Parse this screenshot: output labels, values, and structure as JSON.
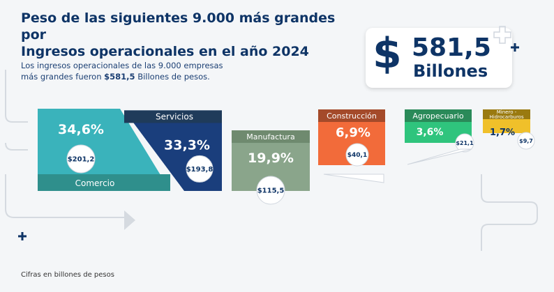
{
  "header": {
    "title_line1": "Peso de las siguientes 9.000 más grandes por",
    "title_line2": "Ingresos operacionales en el año 2024",
    "subtitle_line1": "Los ingresos operacionales de las 9.000 empresas",
    "subtitle_pre": "más grandes fueron ",
    "subtitle_bold": "$581,5",
    "subtitle_post": " Billones de pesos."
  },
  "total_badge": {
    "symbol": "$",
    "amount": "581,5",
    "unit": "Billones"
  },
  "footer_note": "Cifras en billones de pesos",
  "colors": {
    "navy": "#0e3466",
    "teal": "#3ab3bb",
    "blue": "#1a3e7c",
    "sage": "#8aa58b",
    "orange": "#f26b3a",
    "green": "#2fc47d",
    "yellow": "#f0c02a"
  },
  "chart_data": {
    "type": "bar",
    "categories": [
      "Comercio",
      "Servicios",
      "Manufactura",
      "Construcción",
      "Agropecuario",
      "Minero - Hidrocarburos"
    ],
    "percent_labels": [
      "34,6%",
      "33,3%",
      "19,9%",
      "6,9%",
      "3,6%",
      "1,7%"
    ],
    "value_labels": [
      "$201,2",
      "$193,8",
      "$115,5",
      "$40,1",
      "$21,1",
      "$9,7"
    ],
    "series": [
      {
        "values": [
          201.2,
          193.8,
          115.5,
          40.1,
          21.1,
          9.7
        ]
      }
    ],
    "shares_percent": [
      34.6,
      33.3,
      19.9,
      6.9,
      3.6,
      1.7
    ]
  }
}
